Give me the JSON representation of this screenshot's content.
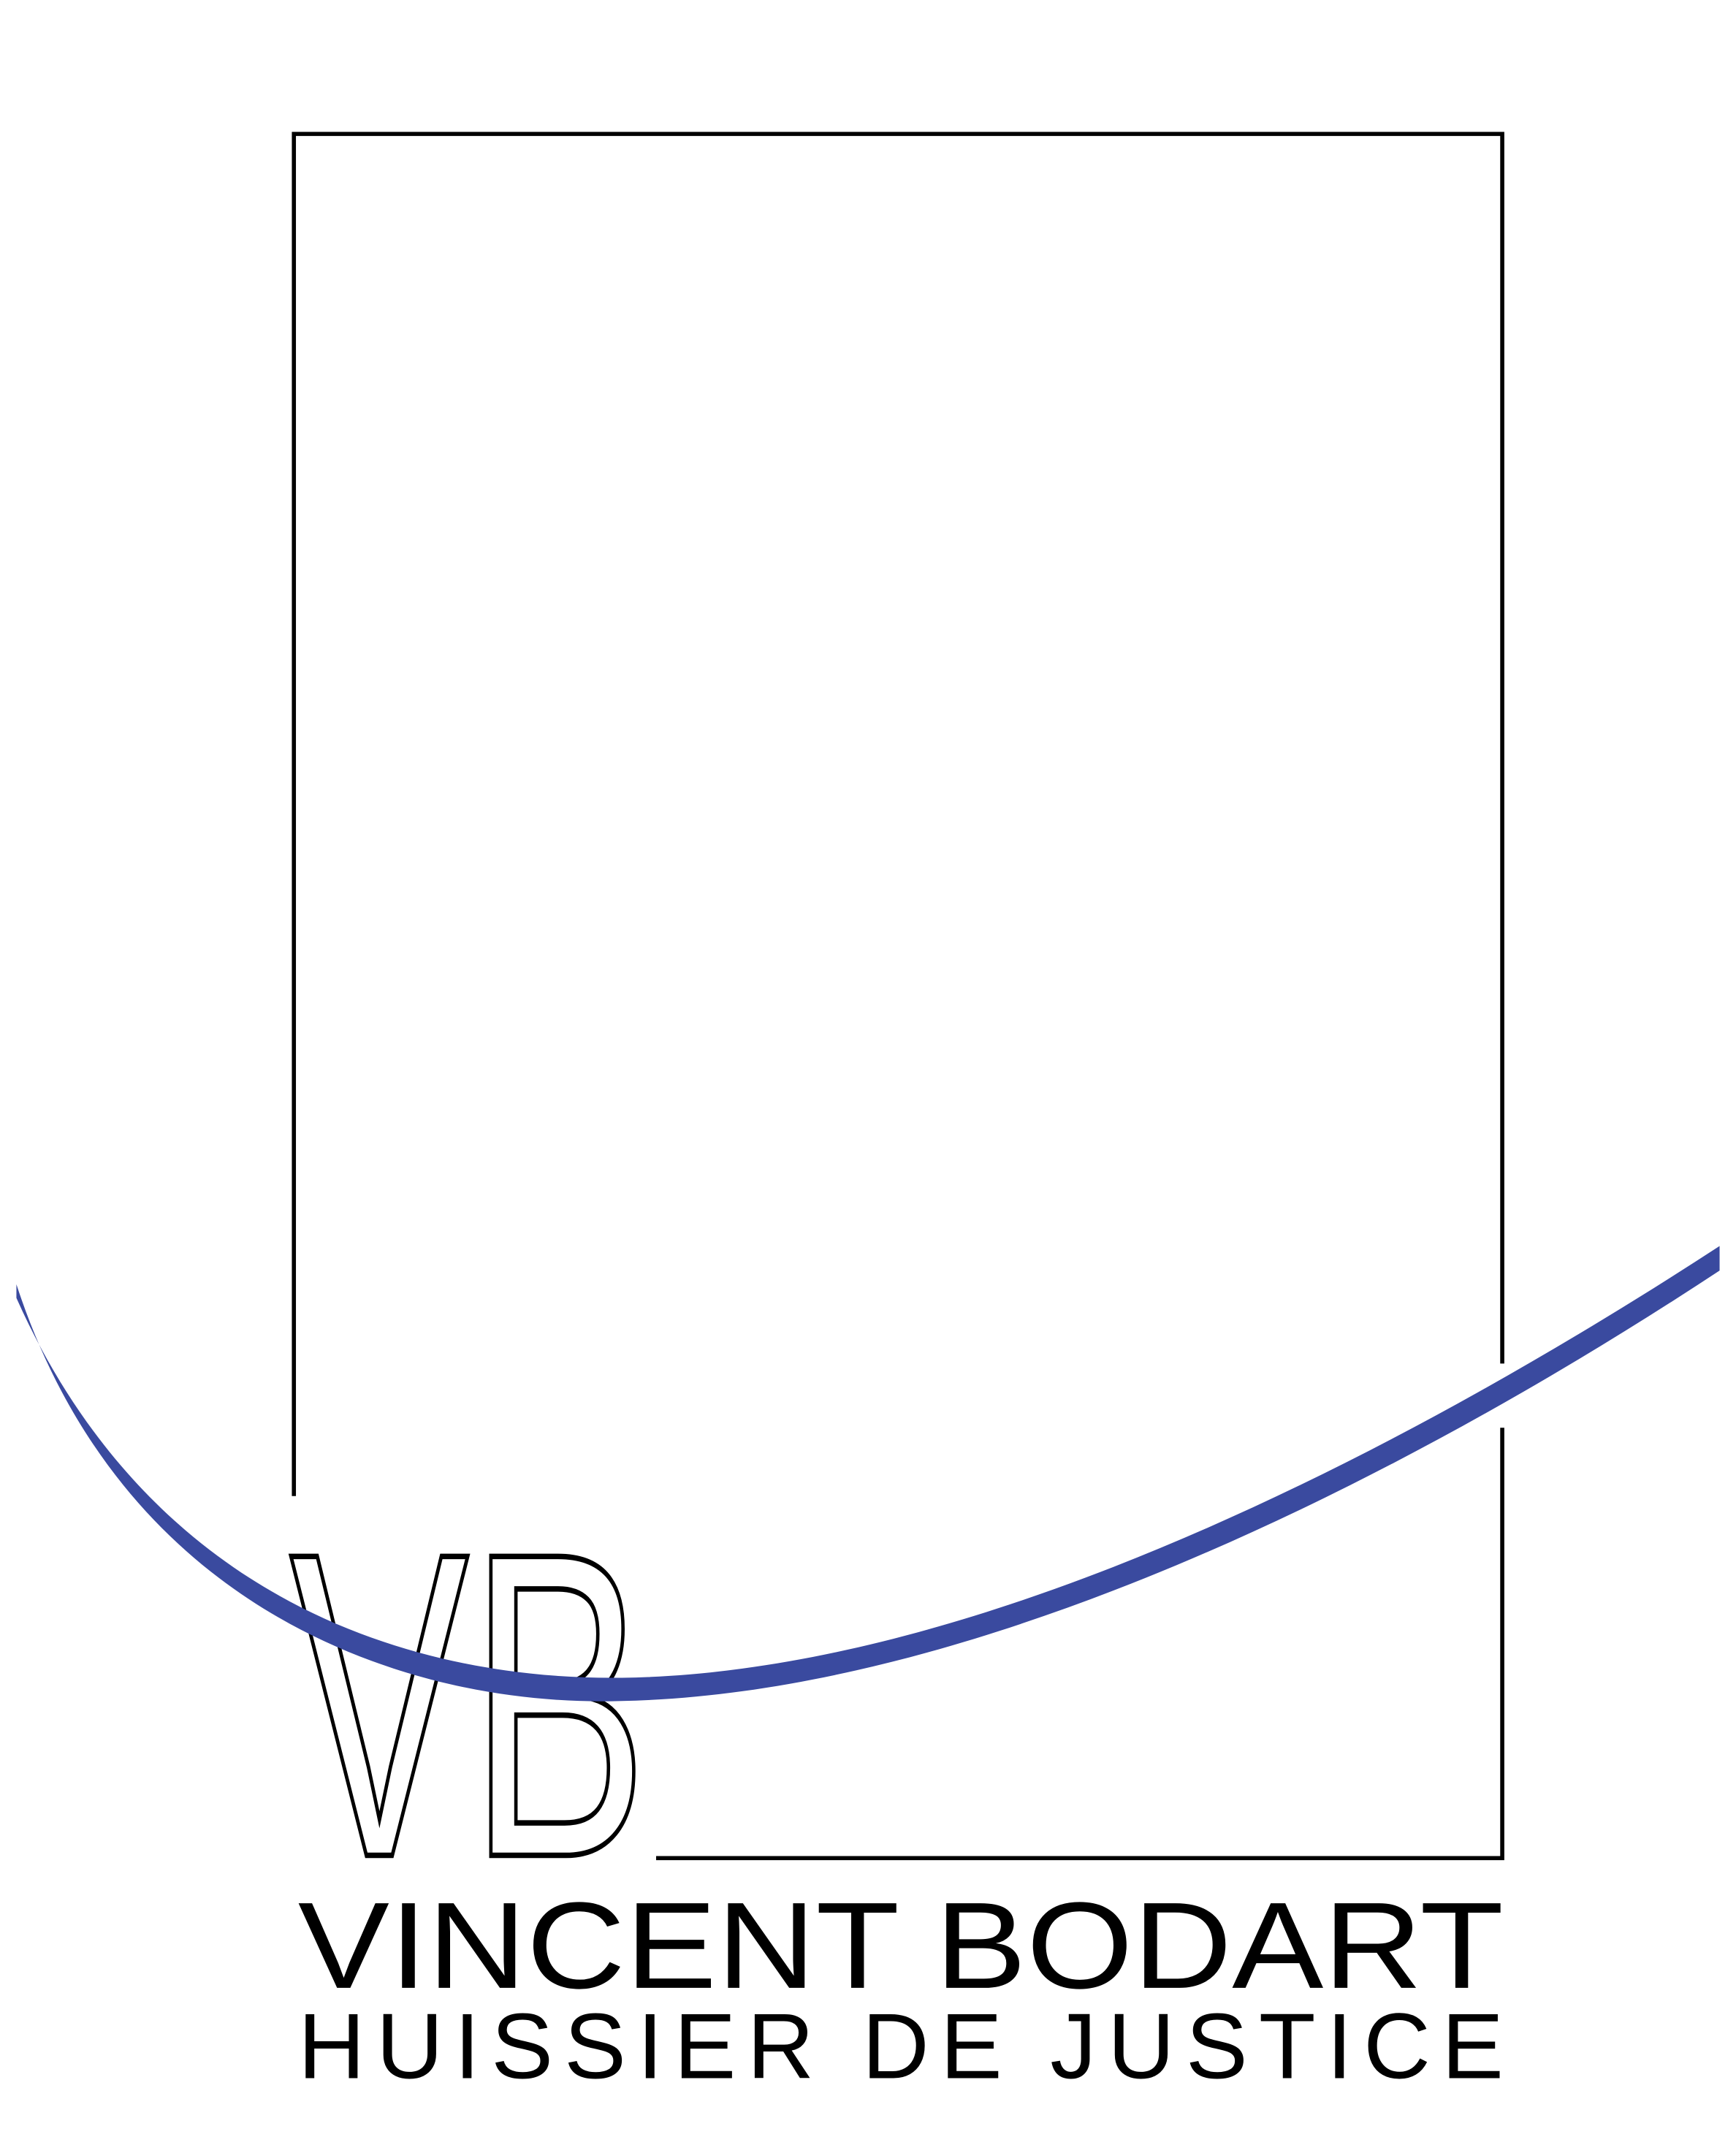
{
  "logo": {
    "monogram": "VB",
    "name": "VINCENT BODART",
    "subtitle": "HUISSIER DE JUSTICE"
  }
}
